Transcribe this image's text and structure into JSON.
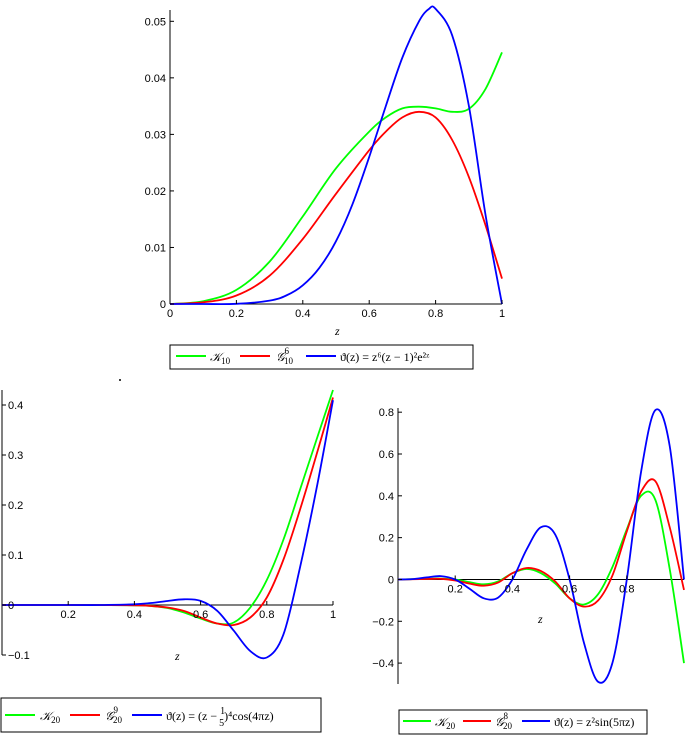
{
  "chart_data": [
    {
      "type": "line",
      "xlabel": "z",
      "ylabel": "",
      "xlim": [
        0,
        1
      ],
      "ylim": [
        0,
        0.052
      ],
      "x_ticks": [
        "0",
        "0.2",
        "0.4",
        "0.6",
        "0.8",
        "1"
      ],
      "y_ticks": [
        "0",
        "0.01",
        "0.02",
        "0.03",
        "0.04",
        "0.05"
      ],
      "legend_position": "bottom",
      "series": [
        {
          "name": "𝒦₁₀",
          "color": "#00ff00",
          "x": [
            0,
            0.1,
            0.2,
            0.3,
            0.4,
            0.5,
            0.6,
            0.65,
            0.7,
            0.75,
            0.8,
            0.85,
            0.9,
            0.95,
            1.0
          ],
          "y": [
            0,
            0.0005,
            0.0025,
            0.0075,
            0.0155,
            0.024,
            0.0305,
            0.033,
            0.0346,
            0.0349,
            0.0346,
            0.034,
            0.0345,
            0.038,
            0.0445
          ]
        },
        {
          "name": "𝒢⁶₁₀",
          "color": "#ff0000",
          "x": [
            0,
            0.1,
            0.2,
            0.3,
            0.4,
            0.5,
            0.6,
            0.65,
            0.7,
            0.75,
            0.8,
            0.85,
            0.9,
            0.95,
            1.0
          ],
          "y": [
            0,
            0.0003,
            0.0015,
            0.005,
            0.0115,
            0.0195,
            0.0272,
            0.0305,
            0.033,
            0.034,
            0.033,
            0.029,
            0.0225,
            0.014,
            0.0045
          ]
        },
        {
          "name": "ϑ(z) = z⁶(z − 1)²e²ᶻ",
          "color": "#0000ff",
          "x": [
            0,
            0.1,
            0.2,
            0.3,
            0.35,
            0.4,
            0.45,
            0.5,
            0.55,
            0.6,
            0.65,
            0.7,
            0.75,
            0.78,
            0.8,
            0.85,
            0.9,
            0.95,
            1.0
          ],
          "y": [
            0,
            0.0,
            3e-05,
            0.0006,
            0.0015,
            0.0033,
            0.0064,
            0.0111,
            0.0177,
            0.026,
            0.035,
            0.0436,
            0.05,
            0.0522,
            0.0522,
            0.0475,
            0.0351,
            0.0159,
            0
          ]
        }
      ],
      "legend_labels": {
        "k": "𝒦",
        "ksub": "10",
        "g": "𝒢",
        "gsup": "6",
        "gsub": "10",
        "theta": "ϑ(z) = z⁶(z − 1)²e²ᶻ"
      }
    },
    {
      "type": "line",
      "xlabel": "z",
      "ylabel": "",
      "xlim": [
        0,
        1
      ],
      "ylim": [
        -0.1,
        0.43
      ],
      "x_ticks": [
        "0.2",
        "0.4",
        "0.6",
        "0.8",
        "1"
      ],
      "y_ticks": [
        "−0.1",
        "0",
        "0.1",
        "0.2",
        "0.3",
        "0.4"
      ],
      "legend_position": "bottom",
      "series": [
        {
          "name": "𝒦₂₀",
          "color": "#00ff00",
          "x": [
            0,
            0.2,
            0.4,
            0.45,
            0.5,
            0.55,
            0.6,
            0.65,
            0.7,
            0.75,
            0.8,
            0.85,
            0.9,
            0.95,
            1.0
          ],
          "y": [
            0,
            0,
            -0.0005,
            -0.002,
            -0.006,
            -0.015,
            -0.027,
            -0.037,
            -0.035,
            -0.005,
            0.05,
            0.13,
            0.23,
            0.33,
            0.43
          ]
        },
        {
          "name": "𝒢⁹₂₀",
          "color": "#ff0000",
          "x": [
            0,
            0.2,
            0.4,
            0.45,
            0.5,
            0.55,
            0.6,
            0.65,
            0.7,
            0.75,
            0.8,
            0.85,
            0.9,
            0.95,
            1.0
          ],
          "y": [
            0,
            0,
            -0.0005,
            -0.002,
            -0.005,
            -0.012,
            -0.025,
            -0.037,
            -0.04,
            -0.025,
            0.015,
            0.09,
            0.19,
            0.3,
            0.415
          ]
        },
        {
          "name": "ϑ(z) = (z − 1/5)⁴cos(4πz)",
          "color": "#0000ff",
          "x": [
            0,
            0.2,
            0.3,
            0.4,
            0.45,
            0.5,
            0.55,
            0.6,
            0.65,
            0.7,
            0.75,
            0.8,
            0.85,
            0.9,
            0.95,
            1.0
          ],
          "y": [
            0,
            0,
            0.0001,
            0.0015,
            0.004,
            0.0081,
            0.0115,
            0.0083,
            -0.0115,
            -0.0512,
            -0.0922,
            -0.1049,
            -0.0595,
            0.0742,
            0.2316,
            0.4096
          ]
        }
      ],
      "legend_labels": {
        "k": "𝒦",
        "ksub": "20",
        "g": "𝒢",
        "gsup": "9",
        "gsub": "20",
        "theta_pre": "ϑ(z) = (z − ",
        "frac_num": "1",
        "frac_den": "5",
        "theta_post": ")⁴cos(4πz)"
      }
    },
    {
      "type": "line",
      "xlabel": "z",
      "ylabel": "",
      "xlim": [
        0,
        1
      ],
      "ylim": [
        -0.5,
        0.82
      ],
      "x_ticks": [
        "0.2",
        "0.4",
        "0.6",
        "0.8"
      ],
      "y_ticks": [
        "−0.4",
        "−0.2",
        "0",
        "0.2",
        "0.4",
        "0.6",
        "0.8"
      ],
      "legend_position": "bottom",
      "series": [
        {
          "name": "𝒦₂₀",
          "color": "#00ff00",
          "x": [
            0,
            0.1,
            0.15,
            0.2,
            0.25,
            0.3,
            0.35,
            0.4,
            0.45,
            0.5,
            0.55,
            0.6,
            0.65,
            0.7,
            0.75,
            0.8,
            0.85,
            0.9,
            0.95,
            1.0
          ],
          "y": [
            0,
            0.003,
            0.004,
            0.0,
            -0.013,
            -0.023,
            -0.01,
            0.03,
            0.05,
            0.03,
            -0.02,
            -0.09,
            -0.12,
            -0.07,
            0.06,
            0.24,
            0.4,
            0.38,
            0.05,
            -0.4
          ]
        },
        {
          "name": "𝒢⁸₂₀",
          "color": "#ff0000",
          "x": [
            0,
            0.1,
            0.15,
            0.2,
            0.25,
            0.3,
            0.35,
            0.4,
            0.45,
            0.5,
            0.55,
            0.6,
            0.65,
            0.7,
            0.75,
            0.8,
            0.85,
            0.9,
            0.95,
            1.0
          ],
          "y": [
            0,
            0.002,
            0.003,
            -0.005,
            -0.02,
            -0.03,
            -0.015,
            0.03,
            0.055,
            0.04,
            -0.01,
            -0.09,
            -0.13,
            -0.1,
            0.02,
            0.23,
            0.42,
            0.47,
            0.25,
            -0.05
          ]
        },
        {
          "name": "ϑ(z) = z²sin(5πz)",
          "color": "#0000ff",
          "x": [
            0,
            0.05,
            0.1,
            0.15,
            0.2,
            0.25,
            0.3,
            0.35,
            0.4,
            0.45,
            0.5,
            0.55,
            0.6,
            0.65,
            0.7,
            0.75,
            0.8,
            0.85,
            0.9,
            0.95,
            1.0
          ],
          "y": [
            0,
            0.0017,
            0.01,
            0.0159,
            0.0,
            -0.0442,
            -0.09,
            -0.0866,
            0.0,
            0.1443,
            0.25,
            0.2139,
            0.0,
            -0.3018,
            -0.49,
            -0.3977,
            0.0,
            0.5153,
            0.81,
            0.6381,
            0.0
          ]
        }
      ],
      "legend_labels": {
        "k": "𝒦",
        "ksub": "20",
        "g": "𝒢",
        "gsup": "8",
        "gsub": "20",
        "theta": "ϑ(z) = z²sin(5πz)"
      }
    }
  ]
}
